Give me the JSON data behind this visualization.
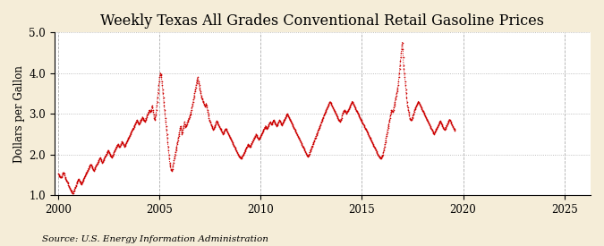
{
  "title": "Weekly Texas All Grades Conventional Retail Gasoline Prices",
  "ylabel": "Dollars per Gallon",
  "source": "Source: U.S. Energy Information Administration",
  "ylim": [
    1.0,
    5.0
  ],
  "yticks": [
    1.0,
    2.0,
    3.0,
    4.0,
    5.0
  ],
  "xticks": [
    2000,
    2005,
    2010,
    2015,
    2020,
    2025
  ],
  "xlim_start": 1999.8,
  "xlim_end": 2026.3,
  "line_color": "#CC0000",
  "plot_bg_color": "#FFFFFF",
  "outer_bg_color": "#F5EDD8",
  "grid_color": "#999999",
  "title_fontsize": 11.5,
  "label_fontsize": 8.5,
  "tick_fontsize": 8.5,
  "source_fontsize": 7.5,
  "start_year": 2000.0,
  "prices": [
    1.52,
    1.5,
    1.48,
    1.47,
    1.46,
    1.45,
    1.44,
    1.43,
    1.45,
    1.47,
    1.5,
    1.52,
    1.54,
    1.55,
    1.54,
    1.52,
    1.48,
    1.45,
    1.42,
    1.4,
    1.38,
    1.36,
    1.34,
    1.32,
    1.3,
    1.28,
    1.25,
    1.22,
    1.2,
    1.18,
    1.16,
    1.14,
    1.12,
    1.1,
    1.08,
    1.06,
    1.05,
    1.04,
    1.05,
    1.08,
    1.1,
    1.12,
    1.15,
    1.18,
    1.2,
    1.22,
    1.25,
    1.28,
    1.3,
    1.33,
    1.35,
    1.38,
    1.4,
    1.38,
    1.36,
    1.34,
    1.32,
    1.3,
    1.28,
    1.26,
    1.28,
    1.3,
    1.32,
    1.35,
    1.38,
    1.4,
    1.42,
    1.44,
    1.46,
    1.48,
    1.5,
    1.52,
    1.54,
    1.56,
    1.58,
    1.6,
    1.62,
    1.64,
    1.66,
    1.68,
    1.7,
    1.72,
    1.74,
    1.76,
    1.74,
    1.72,
    1.7,
    1.68,
    1.66,
    1.64,
    1.62,
    1.6,
    1.62,
    1.64,
    1.66,
    1.68,
    1.7,
    1.72,
    1.74,
    1.76,
    1.78,
    1.8,
    1.82,
    1.84,
    1.86,
    1.88,
    1.9,
    1.92,
    1.9,
    1.88,
    1.86,
    1.84,
    1.82,
    1.8,
    1.82,
    1.84,
    1.86,
    1.88,
    1.9,
    1.92,
    1.94,
    1.96,
    1.98,
    2.0,
    2.02,
    2.04,
    2.06,
    2.08,
    2.1,
    2.08,
    2.06,
    2.04,
    2.02,
    2.0,
    1.98,
    1.96,
    1.94,
    1.92,
    1.94,
    1.96,
    1.98,
    2.0,
    2.02,
    2.05,
    2.08,
    2.1,
    2.12,
    2.14,
    2.16,
    2.18,
    2.2,
    2.22,
    2.24,
    2.26,
    2.24,
    2.22,
    2.2,
    2.18,
    2.2,
    2.22,
    2.24,
    2.26,
    2.28,
    2.3,
    2.32,
    2.3,
    2.28,
    2.26,
    2.24,
    2.22,
    2.2,
    2.22,
    2.24,
    2.26,
    2.28,
    2.3,
    2.32,
    2.34,
    2.36,
    2.38,
    2.4,
    2.42,
    2.44,
    2.46,
    2.48,
    2.5,
    2.52,
    2.54,
    2.56,
    2.58,
    2.6,
    2.62,
    2.64,
    2.66,
    2.68,
    2.7,
    2.72,
    2.74,
    2.76,
    2.78,
    2.8,
    2.82,
    2.84,
    2.82,
    2.8,
    2.78,
    2.76,
    2.74,
    2.76,
    2.78,
    2.8,
    2.82,
    2.84,
    2.86,
    2.88,
    2.9,
    2.92,
    2.9,
    2.88,
    2.86,
    2.84,
    2.82,
    2.8,
    2.82,
    2.85,
    2.88,
    2.9,
    2.92,
    2.95,
    2.98,
    3.0,
    3.02,
    3.05,
    3.08,
    3.1,
    3.08,
    3.06,
    3.04,
    3.06,
    3.1,
    3.15,
    3.2,
    3.15,
    3.1,
    3.05,
    2.98,
    2.9,
    2.85,
    2.88,
    2.92,
    2.96,
    3.0,
    3.1,
    3.2,
    3.3,
    3.4,
    3.5,
    3.6,
    3.7,
    3.8,
    3.9,
    3.95,
    4.0,
    3.98,
    3.96,
    3.9,
    3.8,
    3.7,
    3.6,
    3.5,
    3.4,
    3.3,
    3.2,
    3.1,
    3.0,
    2.9,
    2.8,
    2.7,
    2.6,
    2.5,
    2.4,
    2.3,
    2.2,
    2.1,
    2.0,
    1.9,
    1.8,
    1.75,
    1.7,
    1.65,
    1.62,
    1.6,
    1.62,
    1.65,
    1.7,
    1.75,
    1.8,
    1.85,
    1.9,
    1.95,
    2.0,
    2.05,
    2.1,
    2.15,
    2.2,
    2.25,
    2.3,
    2.35,
    2.4,
    2.45,
    2.5,
    2.55,
    2.6,
    2.65,
    2.7,
    2.65,
    2.6,
    2.55,
    2.5,
    2.55,
    2.6,
    2.65,
    2.7,
    2.75,
    2.8,
    2.75,
    2.7,
    2.68,
    2.7,
    2.72,
    2.75,
    2.78,
    2.8,
    2.82,
    2.85,
    2.88,
    2.9,
    2.92,
    2.95,
    2.98,
    3.0,
    3.05,
    3.1,
    3.15,
    3.2,
    3.25,
    3.3,
    3.35,
    3.4,
    3.45,
    3.5,
    3.55,
    3.6,
    3.65,
    3.7,
    3.75,
    3.8,
    3.85,
    3.9,
    3.85,
    3.8,
    3.75,
    3.7,
    3.65,
    3.6,
    3.55,
    3.5,
    3.45,
    3.4,
    3.38,
    3.35,
    3.32,
    3.3,
    3.28,
    3.25,
    3.22,
    3.2,
    3.18,
    3.2,
    3.22,
    3.25,
    3.2,
    3.15,
    3.1,
    3.05,
    3.0,
    2.95,
    2.9,
    2.85,
    2.82,
    2.8,
    2.78,
    2.75,
    2.72,
    2.7,
    2.68,
    2.65,
    2.62,
    2.6,
    2.62,
    2.65,
    2.68,
    2.7,
    2.72,
    2.75,
    2.78,
    2.8,
    2.82,
    2.8,
    2.78,
    2.76,
    2.74,
    2.72,
    2.7,
    2.68,
    2.66,
    2.64,
    2.62,
    2.6,
    2.58,
    2.56,
    2.54,
    2.52,
    2.5,
    2.52,
    2.54,
    2.56,
    2.58,
    2.6,
    2.62,
    2.64,
    2.62,
    2.6,
    2.58,
    2.56,
    2.54,
    2.52,
    2.5,
    2.48,
    2.46,
    2.44,
    2.42,
    2.4,
    2.38,
    2.36,
    2.34,
    2.32,
    2.3,
    2.28,
    2.26,
    2.24,
    2.22,
    2.2,
    2.18,
    2.16,
    2.14,
    2.12,
    2.1,
    2.08,
    2.06,
    2.04,
    2.02,
    2.0,
    1.98,
    1.96,
    1.95,
    1.94,
    1.93,
    1.92,
    1.91,
    1.9,
    1.92,
    1.94,
    1.96,
    1.98,
    2.0,
    2.02,
    2.04,
    2.06,
    2.08,
    2.1,
    2.12,
    2.14,
    2.16,
    2.18,
    2.2,
    2.22,
    2.24,
    2.26,
    2.24,
    2.22,
    2.2,
    2.18,
    2.2,
    2.22,
    2.24,
    2.26,
    2.28,
    2.3,
    2.32,
    2.34,
    2.36,
    2.38,
    2.4,
    2.42,
    2.44,
    2.46,
    2.48,
    2.5,
    2.48,
    2.46,
    2.44,
    2.42,
    2.4,
    2.38,
    2.36,
    2.38,
    2.4,
    2.42,
    2.44,
    2.46,
    2.48,
    2.5,
    2.52,
    2.54,
    2.56,
    2.58,
    2.6,
    2.62,
    2.64,
    2.66,
    2.68,
    2.7,
    2.68,
    2.66,
    2.65,
    2.64,
    2.66,
    2.68,
    2.7,
    2.72,
    2.74,
    2.76,
    2.78,
    2.8,
    2.78,
    2.76,
    2.75,
    2.74,
    2.76,
    2.78,
    2.8,
    2.82,
    2.84,
    2.82,
    2.8,
    2.78,
    2.76,
    2.75,
    2.74,
    2.72,
    2.7,
    2.72,
    2.74,
    2.76,
    2.78,
    2.8,
    2.82,
    2.84,
    2.82,
    2.8,
    2.78,
    2.76,
    2.74,
    2.72,
    2.74,
    2.76,
    2.78,
    2.8,
    2.82,
    2.84,
    2.86,
    2.88,
    2.9,
    2.92,
    2.94,
    2.96,
    2.98,
    3.0,
    2.98,
    2.96,
    2.94,
    2.92,
    2.9,
    2.88,
    2.86,
    2.84,
    2.82,
    2.8,
    2.78,
    2.76,
    2.74,
    2.72,
    2.7,
    2.68,
    2.66,
    2.64,
    2.62,
    2.6,
    2.58,
    2.56,
    2.54,
    2.52,
    2.5,
    2.48,
    2.46,
    2.44,
    2.42,
    2.4,
    2.38,
    2.36,
    2.34,
    2.32,
    2.3,
    2.28,
    2.26,
    2.24,
    2.22,
    2.2,
    2.18,
    2.16,
    2.14,
    2.12,
    2.1,
    2.08,
    2.06,
    2.04,
    2.02,
    2.0,
    1.98,
    1.96,
    1.95,
    1.96,
    1.98,
    2.0,
    2.02,
    2.05,
    2.08,
    2.1,
    2.12,
    2.15,
    2.18,
    2.2,
    2.22,
    2.25,
    2.28,
    2.3,
    2.32,
    2.35,
    2.38,
    2.4,
    2.42,
    2.45,
    2.48,
    2.5,
    2.52,
    2.55,
    2.58,
    2.6,
    2.62,
    2.65,
    2.68,
    2.7,
    2.72,
    2.75,
    2.78,
    2.8,
    2.82,
    2.85,
    2.88,
    2.9,
    2.92,
    2.95,
    2.98,
    3.0,
    3.02,
    3.05,
    3.08,
    3.1,
    3.12,
    3.14,
    3.16,
    3.18,
    3.2,
    3.22,
    3.24,
    3.26,
    3.28,
    3.3,
    3.28,
    3.26,
    3.24,
    3.22,
    3.2,
    3.18,
    3.16,
    3.14,
    3.12,
    3.1,
    3.08,
    3.06,
    3.04,
    3.02,
    3.0,
    2.98,
    2.96,
    2.94,
    2.92,
    2.9,
    2.88,
    2.86,
    2.84,
    2.82,
    2.8,
    2.82,
    2.84,
    2.86,
    2.88,
    2.9,
    2.95,
    3.0,
    3.02,
    3.04,
    3.06,
    3.08,
    3.1,
    3.08,
    3.06,
    3.04,
    3.02,
    3.0,
    3.02,
    3.04,
    3.06,
    3.08,
    3.1,
    3.12,
    3.14,
    3.16,
    3.18,
    3.2,
    3.22,
    3.24,
    3.26,
    3.28,
    3.3,
    3.28,
    3.26,
    3.24,
    3.22,
    3.2,
    3.18,
    3.16,
    3.14,
    3.12,
    3.1,
    3.08,
    3.06,
    3.04,
    3.02,
    3.0,
    2.98,
    2.96,
    2.94,
    2.92,
    2.9,
    2.88,
    2.86,
    2.84,
    2.82,
    2.8,
    2.78,
    2.76,
    2.75,
    2.74,
    2.72,
    2.7,
    2.68,
    2.66,
    2.64,
    2.62,
    2.6,
    2.58,
    2.56,
    2.54,
    2.52,
    2.5,
    2.48,
    2.46,
    2.44,
    2.42,
    2.4,
    2.38,
    2.36,
    2.34,
    2.32,
    2.3,
    2.28,
    2.26,
    2.24,
    2.22,
    2.2,
    2.18,
    2.16,
    2.14,
    2.12,
    2.1,
    2.08,
    2.06,
    2.04,
    2.02,
    2.0,
    1.98,
    1.96,
    1.95,
    1.94,
    1.93,
    1.92,
    1.91,
    1.9,
    1.92,
    1.94,
    1.96,
    1.98,
    2.0,
    2.05,
    2.1,
    2.15,
    2.2,
    2.25,
    2.3,
    2.35,
    2.4,
    2.45,
    2.5,
    2.55,
    2.6,
    2.65,
    2.7,
    2.75,
    2.8,
    2.85,
    2.9,
    2.95,
    3.0,
    3.05,
    3.1,
    3.08,
    3.06,
    3.04,
    3.06,
    3.1,
    3.15,
    3.2,
    3.25,
    3.3,
    3.35,
    3.4,
    3.45,
    3.5,
    3.55,
    3.6,
    3.65,
    3.7,
    3.8,
    3.9,
    4.0,
    4.1,
    4.2,
    4.3,
    4.4,
    4.5,
    4.6,
    4.7,
    4.75,
    4.6,
    4.4,
    4.2,
    4.1,
    4.0,
    3.9,
    3.8,
    3.7,
    3.6,
    3.5,
    3.4,
    3.3,
    3.2,
    3.15,
    3.1,
    3.05,
    3.0,
    2.95,
    2.9,
    2.88,
    2.86,
    2.85,
    2.86,
    2.88,
    2.9,
    2.92,
    2.95,
    2.98,
    3.0,
    3.05,
    3.1,
    3.12,
    3.14,
    3.16,
    3.18,
    3.2,
    3.22,
    3.24,
    3.26,
    3.28,
    3.3,
    3.28,
    3.26,
    3.24,
    3.22,
    3.2,
    3.18,
    3.16,
    3.14,
    3.12,
    3.1,
    3.08,
    3.06,
    3.04,
    3.02,
    3.0,
    2.98,
    2.96,
    2.94,
    2.92,
    2.9,
    2.88,
    2.86,
    2.84,
    2.82,
    2.8,
    2.78,
    2.76,
    2.74,
    2.72,
    2.7,
    2.68,
    2.66,
    2.64,
    2.62,
    2.6,
    2.58,
    2.56,
    2.54,
    2.52,
    2.5,
    2.52,
    2.54,
    2.56,
    2.58,
    2.6,
    2.62,
    2.64,
    2.66,
    2.68,
    2.7,
    2.72,
    2.74,
    2.76,
    2.78,
    2.8,
    2.82,
    2.8,
    2.78,
    2.76,
    2.74,
    2.72,
    2.7,
    2.68,
    2.66,
    2.64,
    2.62,
    2.6,
    2.62,
    2.64,
    2.66,
    2.68,
    2.7,
    2.72,
    2.74,
    2.76,
    2.78,
    2.8,
    2.82,
    2.84,
    2.86,
    2.84,
    2.82,
    2.8,
    2.78,
    2.76,
    2.74,
    2.72,
    2.7,
    2.68,
    2.66,
    2.64,
    2.62,
    2.6,
    2.58
  ]
}
